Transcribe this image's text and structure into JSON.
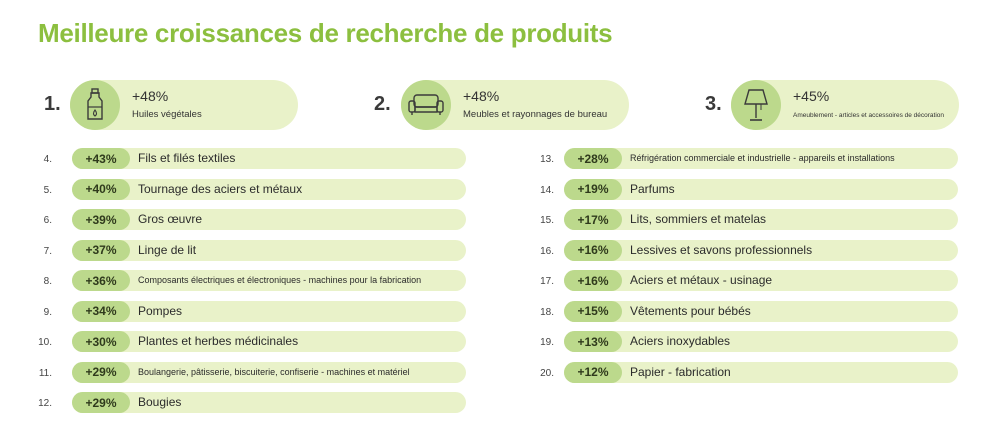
{
  "title": "Meilleure croissances de recherche de produits",
  "top3": [
    {
      "rank": "1.",
      "pct": "+48%",
      "label": "Huiles végétales",
      "icon": "oil-bottle-icon"
    },
    {
      "rank": "2.",
      "pct": "+48%",
      "label": "Meubles et rayonnages de bureau",
      "icon": "sofa-icon"
    },
    {
      "rank": "3.",
      "pct": "+45%",
      "label": "Ameublement - articles et accessoires de décoration",
      "icon": "lamp-icon"
    }
  ],
  "left_list": [
    {
      "rank": "4.",
      "pct": "+43%",
      "label": "Fils et filés textiles"
    },
    {
      "rank": "5.",
      "pct": "+40%",
      "label": "Tournage des aciers et métaux"
    },
    {
      "rank": "6.",
      "pct": "+39%",
      "label": "Gros œuvre"
    },
    {
      "rank": "7.",
      "pct": "+37%",
      "label": "Linge de lit"
    },
    {
      "rank": "8.",
      "pct": "+36%",
      "label": "Composants électriques et électroniques - machines pour la fabrication"
    },
    {
      "rank": "9.",
      "pct": "+34%",
      "label": "Pompes"
    },
    {
      "rank": "10.",
      "pct": "+30%",
      "label": "Plantes et herbes médicinales"
    },
    {
      "rank": "11.",
      "pct": "+29%",
      "label": "Boulangerie, pâtisserie, biscuiterie, confiserie - machines et matériel"
    },
    {
      "rank": "12.",
      "pct": "+29%",
      "label": "Bougies"
    }
  ],
  "right_list": [
    {
      "rank": "13.",
      "pct": "+28%",
      "label": "Réfrigération commerciale et industrielle - appareils et installations"
    },
    {
      "rank": "14.",
      "pct": "+19%",
      "label": "Parfums"
    },
    {
      "rank": "15.",
      "pct": "+17%",
      "label": "Lits, sommiers et matelas"
    },
    {
      "rank": "16.",
      "pct": "+16%",
      "label": "Lessives et savons professionnels"
    },
    {
      "rank": "17.",
      "pct": "+16%",
      "label": "Aciers et métaux - usinage"
    },
    {
      "rank": "18.",
      "pct": "+15%",
      "label": "Vêtements pour bébés"
    },
    {
      "rank": "19.",
      "pct": "+13%",
      "label": "Aciers inoxydables"
    },
    {
      "rank": "20.",
      "pct": "+12%",
      "label": "Papier - fabrication"
    }
  ],
  "colors": {
    "accent": "#8cbf3f",
    "pill": "#e9f2c9",
    "badge": "#bcd98c"
  }
}
